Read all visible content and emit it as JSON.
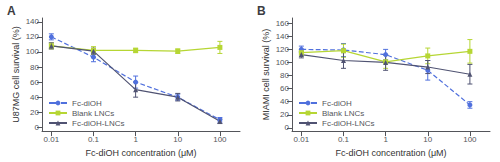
{
  "chart_data": [
    {
      "type": "line",
      "title": "A",
      "xlabel": "Fc-diOH concentration (μM)",
      "ylabel": "U87MG cell survival (%)",
      "x": [
        0.01,
        0.1,
        1,
        10,
        100
      ],
      "log": "x",
      "xlim": [
        0.006,
        300
      ],
      "xticks": [
        0.01,
        0.1,
        1,
        10,
        100
      ],
      "ylim": [
        -5,
        145
      ],
      "yticks": [
        0,
        20,
        40,
        60,
        80,
        100,
        120,
        140
      ],
      "grid": false,
      "legend": "lower left",
      "series": [
        {
          "name": "Fc-diOH",
          "values": [
            120,
            93,
            60,
            40,
            10
          ],
          "yerr": [
            4,
            6,
            8,
            4,
            3
          ],
          "line_style": "dashed",
          "marker": "circle"
        },
        {
          "name": "Blank LNCs",
          "values": [
            108,
            102,
            102,
            101,
            106
          ],
          "yerr": [
            4,
            5,
            3,
            3,
            8
          ],
          "line_style": "solid",
          "marker": "square"
        },
        {
          "name": "Fc-diOH-LNCs",
          "values": [
            108,
            101,
            50,
            40,
            8
          ],
          "yerr": [
            4,
            4,
            10,
            5,
            3
          ],
          "line_style": "solid",
          "marker": "triangle"
        }
      ]
    },
    {
      "type": "line",
      "title": "B",
      "xlabel": "Fc-diOH concentration (μM)",
      "ylabel": "MIAMI cell survival (%)",
      "x": [
        0.01,
        0.1,
        1,
        10,
        100
      ],
      "log": "x",
      "xlim": [
        0.006,
        300
      ],
      "xticks": [
        0.01,
        0.1,
        1,
        10,
        100
      ],
      "ylim": [
        -5,
        168
      ],
      "yticks": [
        0,
        20,
        40,
        60,
        80,
        100,
        120,
        140,
        160
      ],
      "grid": false,
      "legend": "lower left",
      "series": [
        {
          "name": "Fc-diOH",
          "values": [
            120,
            119,
            112,
            88,
            35
          ],
          "yerr": [
            5,
            10,
            8,
            15,
            5
          ],
          "line_style": "dashed",
          "marker": "circle"
        },
        {
          "name": "Blank LNCs",
          "values": [
            115,
            118,
            101,
            110,
            117
          ],
          "yerr": [
            5,
            10,
            10,
            12,
            18
          ],
          "line_style": "solid",
          "marker": "square"
        },
        {
          "name": "Fc-diOH-LNCs",
          "values": [
            112,
            103,
            100,
            93,
            82
          ],
          "yerr": [
            5,
            12,
            12,
            10,
            15
          ],
          "line_style": "solid",
          "marker": "triangle"
        }
      ]
    }
  ]
}
